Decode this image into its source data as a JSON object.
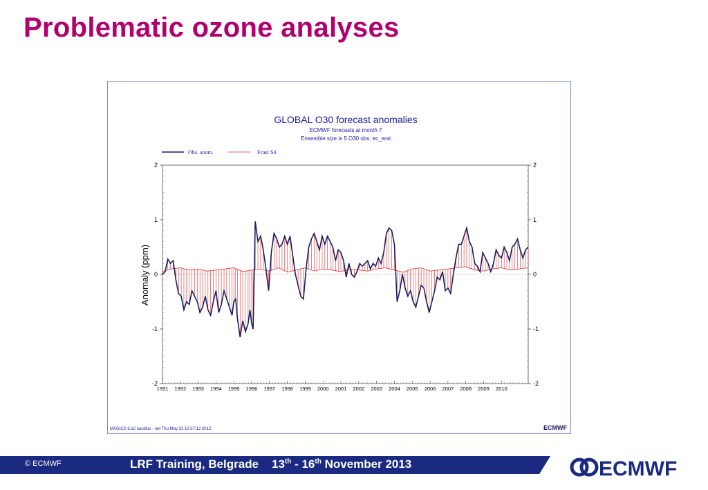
{
  "slide": {
    "title": "Problematic ozone analyses",
    "footer_copyright": "© ECMWF",
    "footer_event": "LRF Training, Belgrade",
    "footer_date_start": "13",
    "footer_date_start_sup": "th",
    "footer_date_sep": " - 16",
    "footer_date_end_sup": "th",
    "footer_date_rest": " November 2013",
    "logo_text": "ECMWF"
  },
  "figure": {
    "credit": "MAGICS 6.12 nautilus - net Thu May 31 10:57:12 2012",
    "small_logo_text": "ECMWF"
  },
  "chart_data": {
    "type": "line",
    "title": "GLOBAL O30 forecast anomalies",
    "subtitle_1": "ECMWF forecasts at month  7",
    "subtitle_2": "Ensemble size is  5     O30 obs: ec_erai",
    "xlabel": "",
    "ylabel": "Anomaly (ppm)",
    "ylim": [
      -2,
      2
    ],
    "xlim": [
      1991,
      2011.5
    ],
    "yticks": [
      2,
      1,
      0,
      -1,
      -2
    ],
    "xticks": [
      1991,
      1992,
      1993,
      1994,
      1995,
      1996,
      1997,
      1998,
      1999,
      2000,
      2001,
      2002,
      2003,
      2004,
      2005,
      2006,
      2007,
      2008,
      2009,
      2010
    ],
    "legend_position": "top-left",
    "colors": {
      "obs": "#1a1a5e",
      "fcast": "#e03030"
    },
    "series": [
      {
        "name": "Obs. anom.",
        "x": [
          1991.0,
          1991.15,
          1991.3,
          1991.45,
          1991.6,
          1991.75,
          1991.9,
          1992.05,
          1992.2,
          1992.35,
          1992.5,
          1992.65,
          1992.8,
          1992.95,
          1993.1,
          1993.25,
          1993.4,
          1993.55,
          1993.7,
          1993.85,
          1994.0,
          1994.15,
          1994.3,
          1994.45,
          1994.6,
          1994.75,
          1994.9,
          1995.0,
          1995.1,
          1995.2,
          1995.35,
          1995.5,
          1995.65,
          1995.8,
          1995.9,
          1996.0,
          1996.08,
          1996.2,
          1996.35,
          1996.5,
          1996.65,
          1996.8,
          1996.95,
          1997.1,
          1997.25,
          1997.4,
          1997.55,
          1997.7,
          1997.85,
          1998.0,
          1998.15,
          1998.3,
          1998.45,
          1998.6,
          1998.75,
          1998.9,
          1999.05,
          1999.2,
          1999.35,
          1999.5,
          1999.65,
          1999.8,
          1999.95,
          2000.1,
          2000.25,
          2000.4,
          2000.55,
          2000.7,
          2000.85,
          2001.0,
          2001.15,
          2001.3,
          2001.45,
          2001.6,
          2001.75,
          2001.9,
          2002.05,
          2002.2,
          2002.35,
          2002.5,
          2002.65,
          2002.8,
          2002.95,
          2003.1,
          2003.25,
          2003.4,
          2003.55,
          2003.7,
          2003.85,
          2004.0,
          2004.15,
          2004.3,
          2004.45,
          2004.6,
          2004.75,
          2004.9,
          2005.05,
          2005.2,
          2005.35,
          2005.5,
          2005.65,
          2005.8,
          2005.95,
          2006.1,
          2006.25,
          2006.4,
          2006.55,
          2006.7,
          2006.85,
          2007.0,
          2007.15,
          2007.3,
          2007.45,
          2007.6,
          2007.75,
          2007.9,
          2008.05,
          2008.2,
          2008.35,
          2008.5,
          2008.65,
          2008.8,
          2008.95,
          2009.1,
          2009.25,
          2009.4,
          2009.55,
          2009.7,
          2009.85,
          2010.0,
          2010.15,
          2010.3,
          2010.45,
          2010.6,
          2010.75,
          2010.9,
          2011.05,
          2011.2,
          2011.35,
          2011.5
        ],
        "values": [
          0.0,
          0.05,
          0.28,
          0.2,
          0.25,
          -0.1,
          -0.35,
          -0.4,
          -0.65,
          -0.5,
          -0.55,
          -0.3,
          -0.4,
          -0.5,
          -0.7,
          -0.6,
          -0.4,
          -0.65,
          -0.75,
          -0.5,
          -0.3,
          -0.7,
          -0.55,
          -0.3,
          -0.45,
          -0.6,
          -0.75,
          -0.5,
          -0.45,
          -0.8,
          -1.15,
          -0.85,
          -1.05,
          -0.9,
          -0.65,
          -0.9,
          -1.0,
          0.97,
          0.6,
          0.7,
          0.45,
          0.1,
          -0.3,
          0.4,
          0.75,
          0.65,
          0.5,
          0.55,
          0.7,
          0.55,
          0.7,
          0.35,
          0.0,
          -0.2,
          -0.4,
          -0.45,
          0.1,
          0.5,
          0.65,
          0.75,
          0.6,
          0.45,
          0.7,
          0.55,
          0.7,
          0.6,
          0.5,
          0.25,
          0.45,
          0.4,
          0.25,
          -0.05,
          0.2,
          0.0,
          -0.05,
          0.05,
          0.2,
          0.15,
          0.2,
          0.25,
          0.1,
          0.2,
          0.15,
          0.3,
          0.2,
          0.4,
          0.75,
          0.85,
          0.8,
          0.55,
          -0.5,
          -0.3,
          0.0,
          -0.25,
          -0.4,
          -0.3,
          -0.5,
          -0.6,
          -0.4,
          -0.2,
          -0.25,
          -0.5,
          -0.7,
          -0.5,
          -0.3,
          -0.05,
          -0.1,
          0.05,
          -0.3,
          -0.25,
          -0.35,
          0.0,
          0.3,
          0.55,
          0.55,
          0.7,
          0.85,
          0.6,
          0.5,
          0.2,
          0.15,
          0.05,
          0.4,
          0.3,
          0.2,
          0.05,
          0.2,
          0.45,
          0.35,
          0.3,
          0.5,
          0.4,
          0.25,
          0.5,
          0.55,
          0.65,
          0.45,
          0.3,
          0.45,
          0.5
        ]
      },
      {
        "name": "Fcast S4",
        "values_note": "",
        "x": [
          1991.0,
          1991.5,
          1992.0,
          1992.5,
          1993.0,
          1993.5,
          1994.0,
          1994.5,
          1995.0,
          1995.5,
          1996.0,
          1996.5,
          1997.0,
          1997.5,
          1998.0,
          1998.5,
          1999.0,
          1999.5,
          2000.0,
          2000.5,
          2001.0,
          2001.5,
          2002.0,
          2002.5,
          2003.0,
          2003.5,
          2004.0,
          2004.5,
          2005.0,
          2005.5,
          2006.0,
          2006.5,
          2007.0,
          2007.5,
          2008.0,
          2008.5,
          2009.0,
          2009.5,
          2010.0,
          2010.5,
          2011.0,
          2011.5
        ],
        "values": [
          0.05,
          0.1,
          0.12,
          0.08,
          0.1,
          0.06,
          0.08,
          0.1,
          0.12,
          0.05,
          0.08,
          0.1,
          0.06,
          0.12,
          0.04,
          0.08,
          0.12,
          0.06,
          0.1,
          0.08,
          0.05,
          0.1,
          0.08,
          0.06,
          0.1,
          0.12,
          0.08,
          0.04,
          0.1,
          0.12,
          0.06,
          0.08,
          0.1,
          0.12,
          0.14,
          0.08,
          0.06,
          0.1,
          0.12,
          0.08,
          0.1,
          0.12
        ]
      }
    ]
  }
}
